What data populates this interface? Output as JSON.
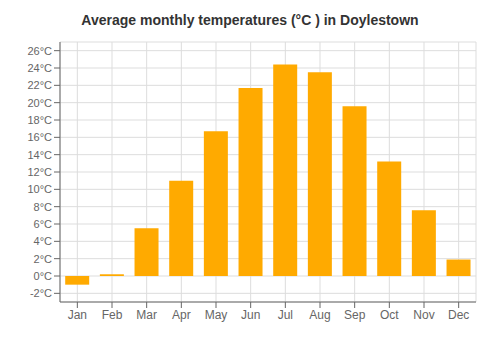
{
  "chart_data": {
    "type": "bar",
    "title": "Average monthly temperatures (°C ) in Doylestown",
    "categories": [
      "Jan",
      "Feb",
      "Mar",
      "Apr",
      "May",
      "Jun",
      "Jul",
      "Aug",
      "Sep",
      "Oct",
      "Nov",
      "Dec"
    ],
    "values": [
      -1.0,
      0.2,
      5.5,
      11.0,
      16.7,
      21.7,
      24.4,
      23.5,
      19.6,
      13.2,
      7.6,
      1.9
    ],
    "color": "#FFAA00",
    "ylim": [
      -3,
      27
    ],
    "yticks": [
      {
        "value": -2,
        "label": "-2°C"
      },
      {
        "value": 0,
        "label": "0°C"
      },
      {
        "value": 2,
        "label": "2°C"
      },
      {
        "value": 4,
        "label": "4°C"
      },
      {
        "value": 6,
        "label": "6°C"
      },
      {
        "value": 8,
        "label": "8°C"
      },
      {
        "value": 10,
        "label": "10°C"
      },
      {
        "value": 12,
        "label": "12°C"
      },
      {
        "value": 14,
        "label": "14°C"
      },
      {
        "value": 16,
        "label": "16°C"
      },
      {
        "value": 18,
        "label": "18°C"
      },
      {
        "value": 20,
        "label": "20°C"
      },
      {
        "value": 22,
        "label": "22°C"
      },
      {
        "value": 24,
        "label": "24°C"
      },
      {
        "value": 26,
        "label": "26°C"
      }
    ],
    "grid": true
  }
}
